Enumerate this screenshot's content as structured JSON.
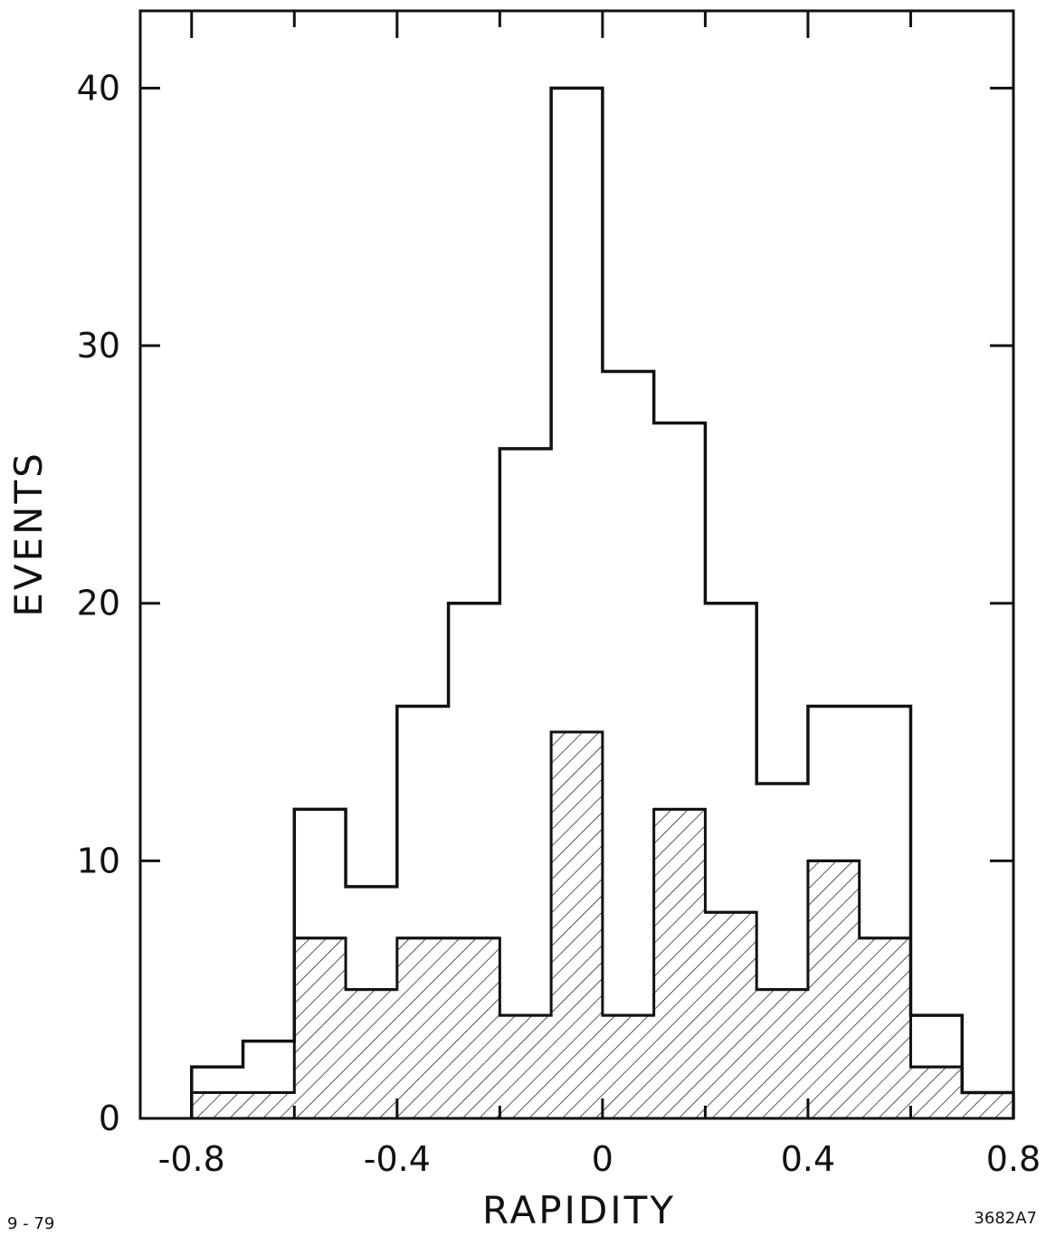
{
  "chart_data": {
    "type": "bar",
    "xlabel": "RAPIDITY",
    "ylabel": "EVENTS",
    "xlim": [
      -0.9,
      0.8
    ],
    "ylim": [
      0,
      43
    ],
    "x_ticks": [
      -0.8,
      -0.4,
      0,
      0.4,
      0.8
    ],
    "x_tick_labels": [
      "-0.8",
      "-0.4",
      "0",
      "0.4",
      "0.8"
    ],
    "y_ticks": [
      0,
      10,
      20,
      30,
      40
    ],
    "y_tick_labels": [
      "0",
      "10",
      "20",
      "30",
      "40"
    ],
    "bin_edges": [
      -0.8,
      -0.7,
      -0.6,
      -0.5,
      -0.4,
      -0.3,
      -0.2,
      -0.1,
      0.0,
      0.1,
      0.2,
      0.3,
      0.4,
      0.5,
      0.6,
      0.7,
      0.8
    ],
    "series": [
      {
        "name": "",
        "style": "outline",
        "values": [
          2,
          3,
          12,
          9,
          16,
          20,
          26,
          40,
          29,
          27,
          20,
          13,
          16,
          16,
          4,
          1
        ]
      },
      {
        "name": "",
        "style": "hatched",
        "values": [
          1,
          1,
          7,
          5,
          7,
          7,
          4,
          15,
          4,
          12,
          8,
          5,
          10,
          7,
          2,
          1
        ]
      }
    ],
    "grid": false,
    "legend": "none"
  },
  "footnotes": {
    "left": "9 - 79",
    "right": "3682A7"
  }
}
